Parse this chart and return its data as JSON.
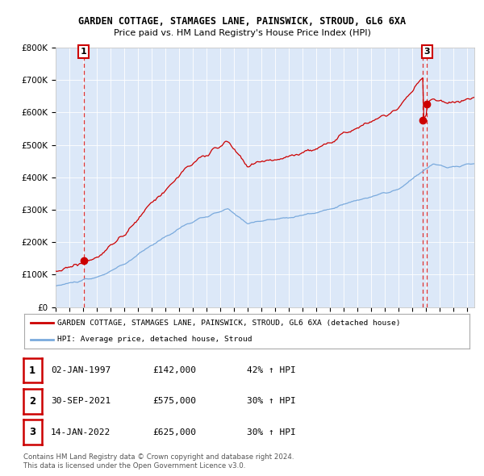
{
  "title1": "GARDEN COTTAGE, STAMAGES LANE, PAINSWICK, STROUD, GL6 6XA",
  "title2": "Price paid vs. HM Land Registry's House Price Index (HPI)",
  "bg_color": "#dce8f8",
  "red_color": "#cc0000",
  "blue_color": "#7aaadd",
  "dashed_color": "#dd3333",
  "ylim": [
    0,
    800000
  ],
  "yticks": [
    0,
    100000,
    200000,
    300000,
    400000,
    500000,
    600000,
    700000,
    800000
  ],
  "ytick_labels": [
    "£0",
    "£100K",
    "£200K",
    "£300K",
    "£400K",
    "£500K",
    "£600K",
    "£700K",
    "£800K"
  ],
  "xlim_start": 1995.0,
  "xlim_end": 2025.5,
  "sale1_date": 1997.04,
  "sale1_price": 142000,
  "sale2_date": 2021.75,
  "sale2_price": 575000,
  "sale3_date": 2022.04,
  "sale3_price": 625000,
  "legend_red": "GARDEN COTTAGE, STAMAGES LANE, PAINSWICK, STROUD, GL6 6XA (detached house)",
  "legend_blue": "HPI: Average price, detached house, Stroud",
  "table_rows": [
    [
      "1",
      "02-JAN-1997",
      "£142,000",
      "42% ↑ HPI"
    ],
    [
      "2",
      "30-SEP-2021",
      "£575,000",
      "30% ↑ HPI"
    ],
    [
      "3",
      "14-JAN-2022",
      "£625,000",
      "30% ↑ HPI"
    ]
  ],
  "footnote1": "Contains HM Land Registry data © Crown copyright and database right 2024.",
  "footnote2": "This data is licensed under the Open Government Licence v3.0."
}
